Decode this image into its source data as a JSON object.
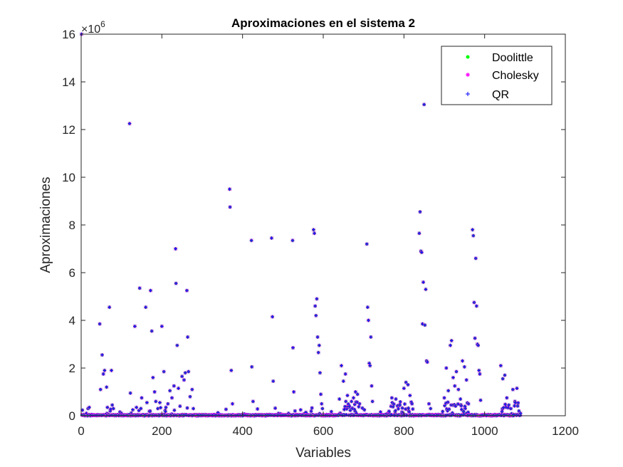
{
  "chart_data": {
    "type": "scatter",
    "title": "Aproximaciones en el sistema 2",
    "xlabel": "Variables",
    "ylabel": "Aproximaciones",
    "exponent_label": "×10",
    "exponent_power": "6",
    "xlim": [
      0,
      1200
    ],
    "ylim": [
      0,
      16
    ],
    "xticks": [
      "0",
      "200",
      "400",
      "600",
      "800",
      "1000",
      "1200"
    ],
    "yticks": [
      "0",
      "2",
      "4",
      "6",
      "8",
      "10",
      "12",
      "14",
      "16"
    ],
    "grid": false,
    "legend": "top-right",
    "series": [
      {
        "name": "Doolittle",
        "color": "#00ff00",
        "marker": "dot"
      },
      {
        "name": "Cholesky",
        "color": "#ff00ff",
        "marker": "asterisk"
      },
      {
        "name": "QR",
        "color": "#0000ff",
        "marker": "plus"
      }
    ],
    "n_points": 1089,
    "points": [
      [
        1,
        16.0
      ],
      [
        13,
        0.1
      ],
      [
        17,
        0.3
      ],
      [
        20,
        0.35
      ],
      [
        25,
        0.05
      ],
      [
        46,
        3.85
      ],
      [
        48,
        1.1
      ],
      [
        52,
        2.55
      ],
      [
        55,
        1.75
      ],
      [
        58,
        1.9
      ],
      [
        63,
        1.2
      ],
      [
        65,
        0.35
      ],
      [
        70,
        4.55
      ],
      [
        72,
        0.2
      ],
      [
        75,
        1.9
      ],
      [
        77,
        0.45
      ],
      [
        80,
        0.3
      ],
      [
        100,
        0.1
      ],
      [
        120,
        12.25
      ],
      [
        122,
        0.95
      ],
      [
        125,
        0.05
      ],
      [
        133,
        3.75
      ],
      [
        137,
        0.35
      ],
      [
        145,
        5.35
      ],
      [
        150,
        0.75
      ],
      [
        160,
        4.55
      ],
      [
        163,
        0.55
      ],
      [
        172,
        5.25
      ],
      [
        175,
        3.55
      ],
      [
        178,
        1.6
      ],
      [
        182,
        1.0
      ],
      [
        185,
        0.6
      ],
      [
        190,
        0.3
      ],
      [
        195,
        0.55
      ],
      [
        200,
        3.75
      ],
      [
        205,
        1.85
      ],
      [
        210,
        0.35
      ],
      [
        215,
        0.5
      ],
      [
        220,
        1.05
      ],
      [
        225,
        0.75
      ],
      [
        230,
        1.25
      ],
      [
        234,
        7.0
      ],
      [
        235,
        5.55
      ],
      [
        238,
        2.95
      ],
      [
        241,
        1.15
      ],
      [
        245,
        0.4
      ],
      [
        250,
        1.65
      ],
      [
        255,
        1.5
      ],
      [
        258,
        1.8
      ],
      [
        262,
        5.25
      ],
      [
        264,
        3.3
      ],
      [
        266,
        1.85
      ],
      [
        270,
        0.8
      ],
      [
        275,
        1.1
      ],
      [
        278,
        0.3
      ],
      [
        368,
        9.5
      ],
      [
        369,
        8.75
      ],
      [
        372,
        1.9
      ],
      [
        375,
        0.5
      ],
      [
        422,
        7.35
      ],
      [
        423,
        2.05
      ],
      [
        426,
        0.6
      ],
      [
        472,
        7.45
      ],
      [
        474,
        4.15
      ],
      [
        476,
        1.45
      ],
      [
        524,
        7.35
      ],
      [
        525,
        2.85
      ],
      [
        527,
        1.0
      ],
      [
        576,
        7.8
      ],
      [
        578,
        7.65
      ],
      [
        580,
        4.6
      ],
      [
        582,
        4.2
      ],
      [
        584,
        4.9
      ],
      [
        586,
        3.3
      ],
      [
        588,
        2.65
      ],
      [
        590,
        2.95
      ],
      [
        592,
        1.8
      ],
      [
        594,
        0.9
      ],
      [
        596,
        0.5
      ],
      [
        598,
        0.3
      ],
      [
        640,
        0.7
      ],
      [
        645,
        2.1
      ],
      [
        650,
        1.45
      ],
      [
        655,
        1.75
      ],
      [
        660,
        0.85
      ],
      [
        665,
        0.4
      ],
      [
        670,
        0.6
      ],
      [
        675,
        0.75
      ],
      [
        680,
        1.0
      ],
      [
        685,
        0.9
      ],
      [
        690,
        0.5
      ],
      [
        708,
        7.2
      ],
      [
        710,
        4.55
      ],
      [
        712,
        4.0
      ],
      [
        714,
        2.2
      ],
      [
        716,
        2.1
      ],
      [
        718,
        3.3
      ],
      [
        720,
        1.25
      ],
      [
        722,
        0.6
      ],
      [
        760,
        0.1
      ],
      [
        770,
        0.75
      ],
      [
        780,
        0.7
      ],
      [
        790,
        0.45
      ],
      [
        800,
        1.15
      ],
      [
        805,
        1.4
      ],
      [
        810,
        1.3
      ],
      [
        815,
        0.85
      ],
      [
        820,
        0.5
      ],
      [
        838,
        7.65
      ],
      [
        840,
        8.55
      ],
      [
        842,
        6.9
      ],
      [
        844,
        6.85
      ],
      [
        846,
        3.85
      ],
      [
        848,
        5.6
      ],
      [
        850,
        13.05
      ],
      [
        852,
        3.8
      ],
      [
        854,
        5.3
      ],
      [
        856,
        2.3
      ],
      [
        858,
        2.25
      ],
      [
        862,
        0.5
      ],
      [
        866,
        0.3
      ],
      [
        900,
        0.75
      ],
      [
        905,
        2.0
      ],
      [
        910,
        1.05
      ],
      [
        915,
        2.95
      ],
      [
        918,
        3.15
      ],
      [
        922,
        1.6
      ],
      [
        926,
        1.25
      ],
      [
        930,
        1.85
      ],
      [
        935,
        1.1
      ],
      [
        940,
        0.7
      ],
      [
        945,
        2.3
      ],
      [
        950,
        2.05
      ],
      [
        955,
        1.5
      ],
      [
        960,
        0.5
      ],
      [
        970,
        7.8
      ],
      [
        972,
        7.55
      ],
      [
        974,
        4.75
      ],
      [
        976,
        3.25
      ],
      [
        978,
        6.6
      ],
      [
        980,
        4.6
      ],
      [
        982,
        3.0
      ],
      [
        984,
        2.95
      ],
      [
        986,
        1.9
      ],
      [
        988,
        1.75
      ],
      [
        990,
        0.65
      ],
      [
        1040,
        2.1
      ],
      [
        1045,
        1.55
      ],
      [
        1050,
        1.7
      ],
      [
        1055,
        0.75
      ],
      [
        1060,
        0.45
      ],
      [
        1065,
        0.3
      ],
      [
        1070,
        1.1
      ],
      [
        1075,
        0.6
      ],
      [
        1080,
        1.15
      ],
      [
        1085,
        0.2
      ],
      [
        1089,
        0.1
      ]
    ]
  }
}
